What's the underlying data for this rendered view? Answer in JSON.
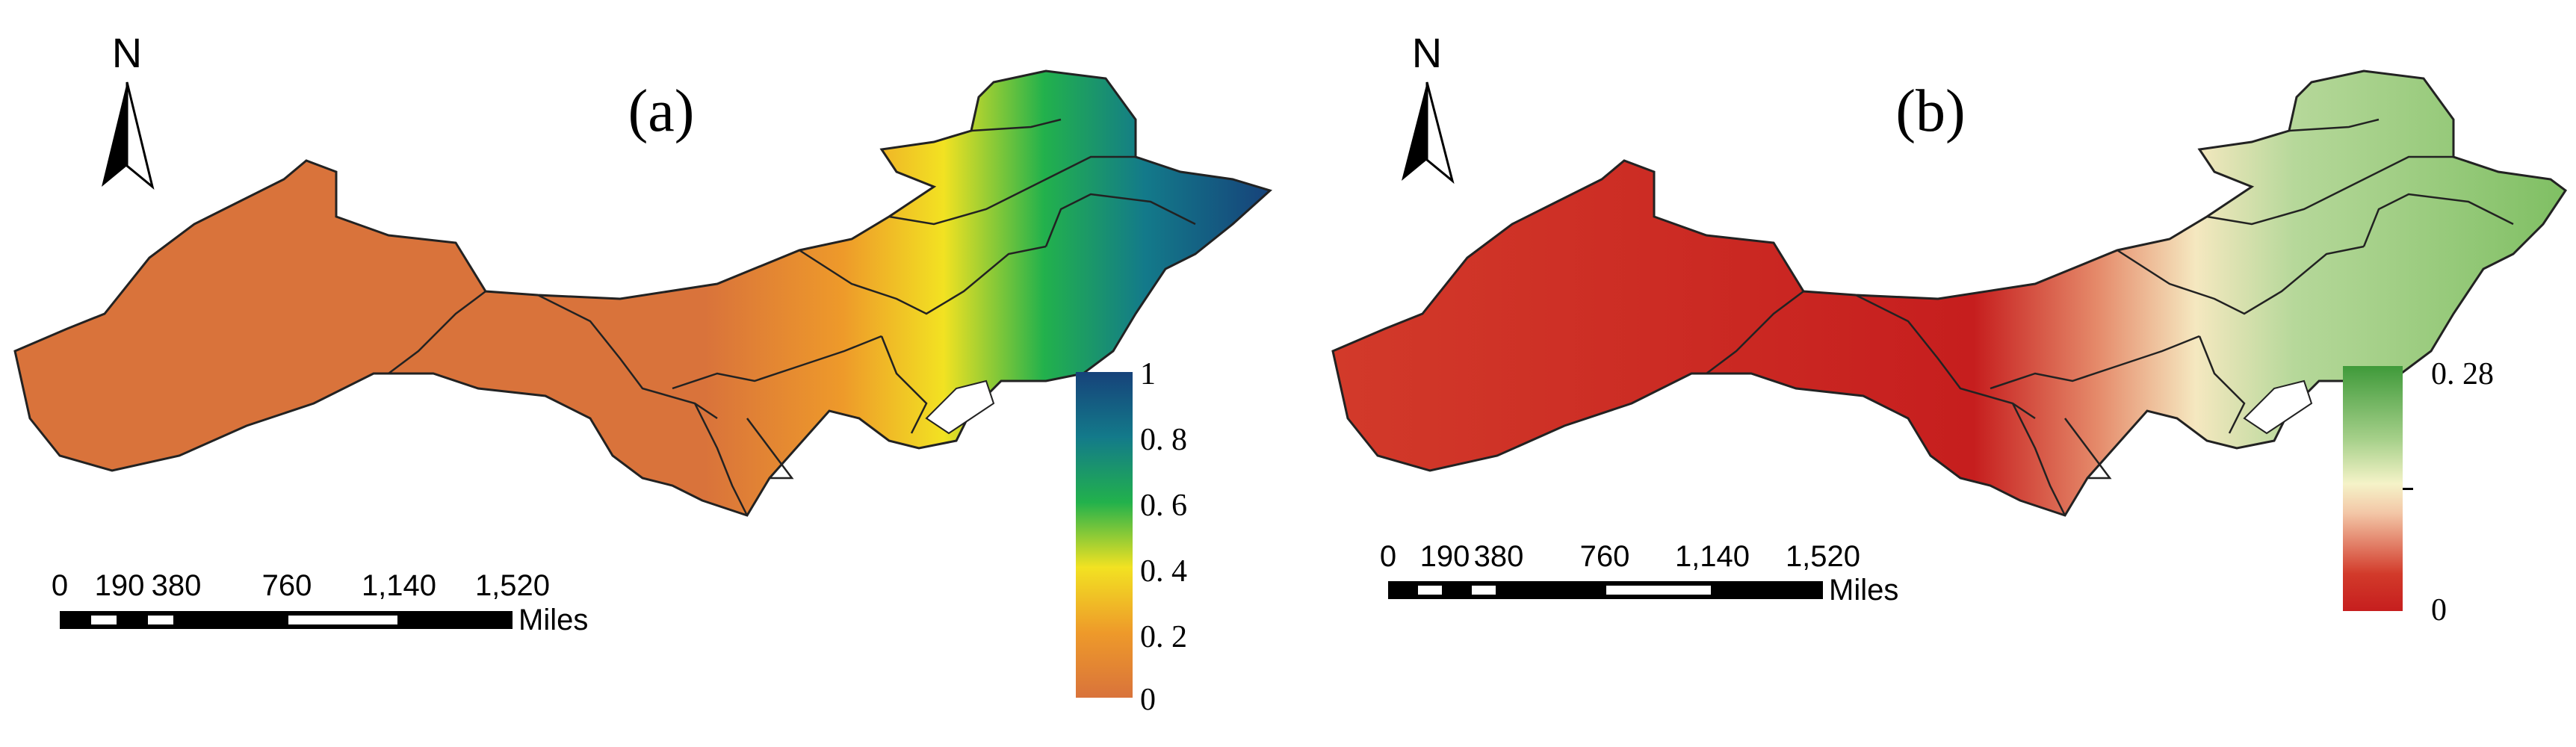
{
  "panels": [
    {
      "label": "(a)",
      "north": "N",
      "scale": {
        "ticks": [
          "0",
          "190",
          "380",
          "760",
          "1,140",
          "1,520"
        ],
        "unit": "Miles"
      },
      "legend": {
        "type": "continuous",
        "ticks": [
          "1",
          "0. 8",
          "0. 6",
          "0. 4",
          "0. 2",
          "0"
        ],
        "colors": [
          "#16427a",
          "#137a8a",
          "#22b14c",
          "#f2e222",
          "#ee9a2a",
          "#d9733b"
        ]
      }
    },
    {
      "label": "(b)",
      "north": "N",
      "scale": {
        "ticks": [
          "0",
          "190",
          "380",
          "760",
          "1,140",
          "1,520"
        ],
        "unit": "Miles"
      },
      "legend": {
        "type": "continuous",
        "ticks": [
          "0. 28",
          "0"
        ],
        "colors": [
          "#3f9a3a",
          "#a6d08a",
          "#f5f3c8",
          "#f3c7a7",
          "#d23a2a",
          "#c61e1e"
        ]
      }
    }
  ]
}
